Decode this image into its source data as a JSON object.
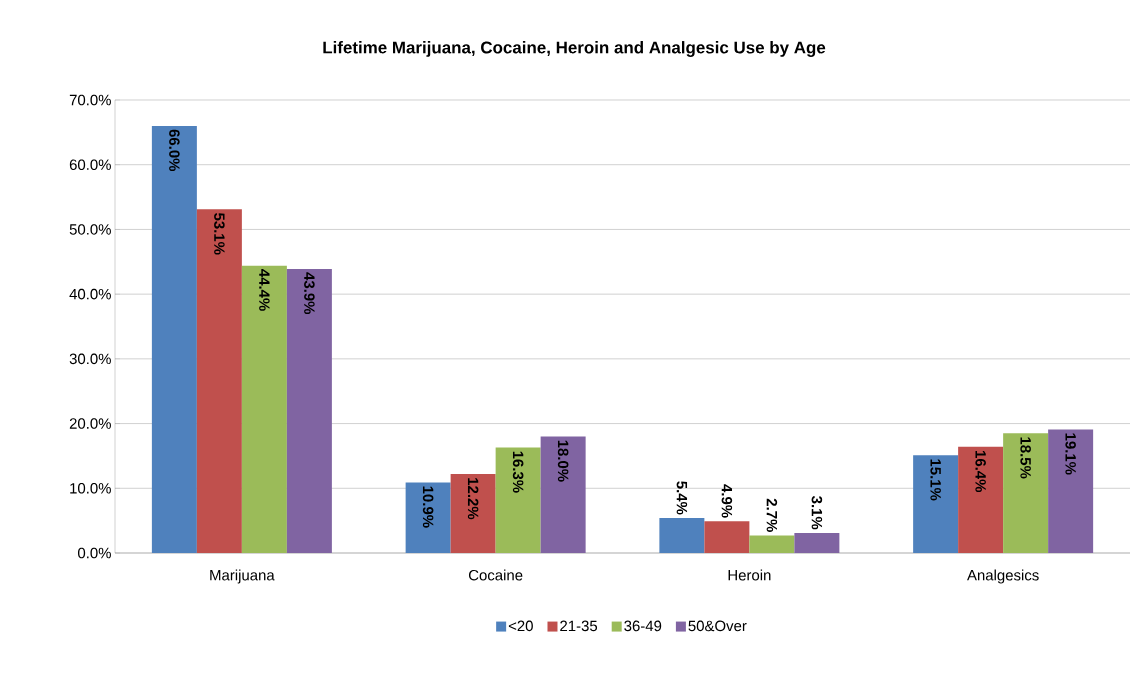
{
  "chart_data": {
    "type": "bar",
    "title": "Lifetime Marijuana, Cocaine, Heroin and Analgesic Use by Age",
    "categories": [
      "Marijuana",
      "Cocaine",
      "Heroin",
      "Analgesics"
    ],
    "series": [
      {
        "name": "<20",
        "color": "#4f81bd",
        "values": [
          66.0,
          10.9,
          5.4,
          15.1
        ],
        "value_labels": [
          "66.0%",
          "10.9%",
          "5.4%",
          "15.1%"
        ]
      },
      {
        "name": "21-35",
        "color": "#c0504d",
        "values": [
          53.1,
          12.2,
          4.9,
          16.4
        ],
        "value_labels": [
          "53.1%",
          "12.2%",
          "4.9%",
          "16.4%"
        ]
      },
      {
        "name": "36-49",
        "color": "#9bbb59",
        "values": [
          44.4,
          16.3,
          2.7,
          18.5
        ],
        "value_labels": [
          "44.4%",
          "16.3%",
          "2.7%",
          "18.5%"
        ]
      },
      {
        "name": "50&Over",
        "color": "#8064a2",
        "values": [
          43.9,
          18.0,
          3.1,
          19.1
        ],
        "value_labels": [
          "43.9%",
          "18.0%",
          "3.1%",
          "19.1%"
        ]
      }
    ],
    "ylim": [
      0,
      70
    ],
    "yticks": [
      {
        "value": 0,
        "label": "0.0%"
      },
      {
        "value": 10,
        "label": "10.0%"
      },
      {
        "value": 20,
        "label": "20.0%"
      },
      {
        "value": 30,
        "label": "30.0%"
      },
      {
        "value": 40,
        "label": "40.0%"
      },
      {
        "value": 50,
        "label": "50.0%"
      },
      {
        "value": 60,
        "label": "60.0%"
      },
      {
        "value": 70,
        "label": "70.0%"
      }
    ],
    "grid": "y",
    "legend": "bottom"
  }
}
